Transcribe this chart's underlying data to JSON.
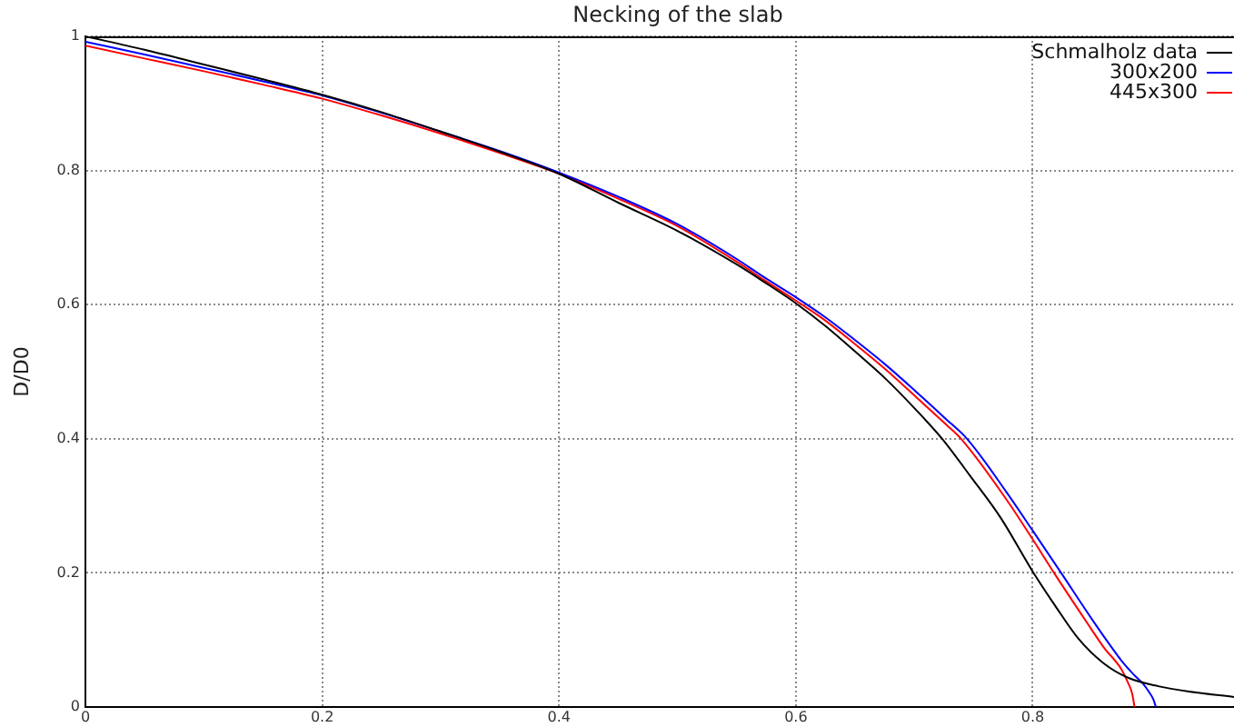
{
  "chart_data": {
    "type": "line",
    "title": "Necking of the slab",
    "ylabel": "D/D0",
    "xlim": [
      0,
      0.97
    ],
    "xticks": [
      0,
      0.2,
      0.4,
      0.6,
      0.8
    ],
    "ylim": [
      0,
      1
    ],
    "yticks": [
      0,
      0.2,
      0.4,
      0.6,
      0.8,
      1
    ],
    "grid": true,
    "legend": "top right",
    "marker": "none",
    "series": [
      {
        "name": "Schmalholz data",
        "color": "#000000",
        "x": [
          0,
          0.05,
          0.1,
          0.15,
          0.2,
          0.25,
          0.3,
          0.35,
          0.4,
          0.45,
          0.5,
          0.55,
          0.573,
          0.6,
          0.625,
          0.65,
          0.676,
          0.701,
          0.724,
          0.747,
          0.773,
          0.8,
          0.819,
          0.839,
          0.86,
          0.88,
          0.906,
          0.932,
          0.97
        ],
        "values": [
          1.0,
          0.98,
          0.958,
          0.936,
          0.913,
          0.887,
          0.858,
          0.828,
          0.795,
          0.752,
          0.71,
          0.66,
          0.634,
          0.602,
          0.568,
          0.53,
          0.489,
          0.444,
          0.399,
          0.345,
          0.282,
          0.202,
          0.151,
          0.101,
          0.065,
          0.044,
          0.031,
          0.023,
          0.015
        ]
      },
      {
        "name": "300x200",
        "color": "#0000ff",
        "x": [
          0,
          0.05,
          0.1,
          0.15,
          0.2,
          0.25,
          0.3,
          0.35,
          0.4,
          0.45,
          0.5,
          0.55,
          0.573,
          0.6,
          0.625,
          0.65,
          0.676,
          0.701,
          0.727,
          0.745,
          0.778,
          0.8,
          0.824,
          0.85,
          0.865,
          0.875,
          0.885,
          0.893,
          0.898,
          0.902,
          0.904
        ],
        "values": [
          0.992,
          0.973,
          0.953,
          0.933,
          0.912,
          0.886,
          0.858,
          0.829,
          0.797,
          0.761,
          0.72,
          0.668,
          0.641,
          0.611,
          0.581,
          0.547,
          0.51,
          0.471,
          0.429,
          0.399,
          0.32,
          0.263,
          0.2,
          0.131,
          0.093,
          0.069,
          0.049,
          0.035,
          0.023,
          0.011,
          0
        ]
      },
      {
        "name": "445x300",
        "color": "#ff0000",
        "x": [
          0,
          0.05,
          0.1,
          0.15,
          0.2,
          0.25,
          0.3,
          0.35,
          0.4,
          0.45,
          0.5,
          0.55,
          0.573,
          0.6,
          0.625,
          0.65,
          0.676,
          0.701,
          0.727,
          0.74,
          0.778,
          0.8,
          0.818,
          0.845,
          0.86,
          0.875,
          0.88,
          0.884,
          0.886
        ],
        "values": [
          0.986,
          0.967,
          0.948,
          0.928,
          0.907,
          0.882,
          0.855,
          0.826,
          0.795,
          0.758,
          0.717,
          0.664,
          0.637,
          0.606,
          0.576,
          0.541,
          0.503,
          0.463,
          0.421,
          0.399,
          0.309,
          0.25,
          0.2,
          0.128,
          0.089,
          0.056,
          0.038,
          0.02,
          0
        ]
      }
    ]
  }
}
